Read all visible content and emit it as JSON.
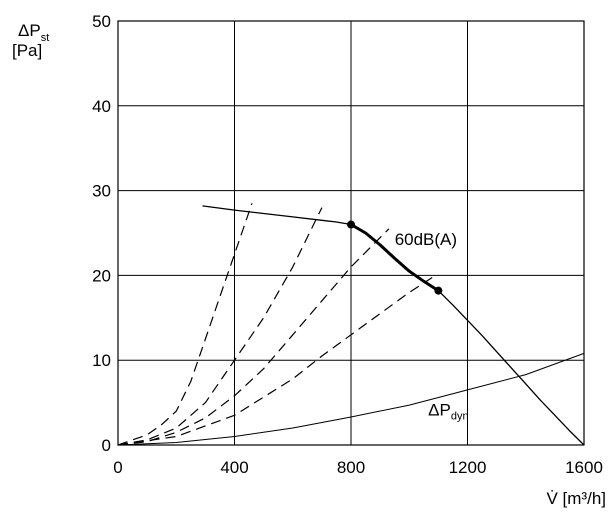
{
  "chart_data": {
    "type": "line",
    "title": "",
    "xlabel": "V̇ [m³/h]",
    "ylabel": {
      "main": "ΔP",
      "sub": "st",
      "unit": "[Pa]"
    },
    "xlim": [
      0,
      1600
    ],
    "ylim": [
      0,
      50
    ],
    "xticks": [
      0,
      400,
      800,
      1200,
      1600
    ],
    "yticks": [
      0,
      10,
      20,
      30,
      40,
      50
    ],
    "grid": true,
    "series": [
      {
        "style": "solid",
        "x": [
          290,
          400,
          500,
          600,
          700,
          750,
          800,
          850,
          900,
          950,
          1000,
          1050,
          1100,
          1150,
          1200,
          1250,
          1300,
          1350,
          1400,
          1450,
          1500,
          1550,
          1600
        ],
        "y": [
          28.2,
          27.7,
          27.3,
          26.9,
          26.5,
          26.3,
          26.0,
          25.0,
          23.6,
          22.0,
          20.5,
          19.3,
          18.2,
          16.5,
          14.7,
          12.9,
          11.0,
          9.1,
          7.2,
          5.3,
          3.5,
          1.7,
          0
        ]
      },
      {
        "style": "solid-bold",
        "x": [
          800,
          850,
          900,
          950,
          1000,
          1050,
          1100
        ],
        "y": [
          26.0,
          25.0,
          23.6,
          22.0,
          20.5,
          19.3,
          18.2
        ]
      },
      {
        "style": "dashed",
        "x": [
          0,
          100,
          150,
          200,
          250,
          300,
          350,
          400,
          460
        ],
        "y": [
          0,
          1.2,
          2.4,
          4.0,
          7.5,
          12.5,
          17.5,
          22.5,
          28.5
        ]
      },
      {
        "style": "dashed",
        "x": [
          0,
          100,
          200,
          300,
          400,
          500,
          600,
          700
        ],
        "y": [
          0,
          0.6,
          2.0,
          5.0,
          10.0,
          15.0,
          21.0,
          28.0
        ]
      },
      {
        "style": "dashed",
        "x": [
          0,
          100,
          200,
          300,
          400,
          500,
          600,
          700,
          800,
          930
        ],
        "y": [
          0,
          0.4,
          1.5,
          3.2,
          5.8,
          9.0,
          13.0,
          17.0,
          21.0,
          25.5
        ]
      },
      {
        "style": "dashed",
        "x": [
          0,
          200,
          400,
          600,
          700,
          800,
          900,
          1000,
          1090
        ],
        "y": [
          0,
          1.0,
          3.5,
          7.8,
          10.5,
          13.0,
          15.5,
          18.0,
          20.0
        ]
      },
      {
        "style": "thin",
        "x": [
          0,
          200,
          400,
          600,
          800,
          1000,
          1200,
          1400,
          1600
        ],
        "y": [
          0,
          0.3,
          1.0,
          2.0,
          3.3,
          4.7,
          6.5,
          8.3,
          10.8
        ]
      }
    ],
    "markers": [
      {
        "x": 800,
        "y": 26.0
      },
      {
        "x": 1100,
        "y": 18.2
      }
    ],
    "annotations": [
      {
        "text": "60dB(A)",
        "x": 950,
        "y": 23.6
      },
      {
        "text": "ΔP",
        "sub": "dyn",
        "x": 1065,
        "y": 3.5
      }
    ]
  }
}
